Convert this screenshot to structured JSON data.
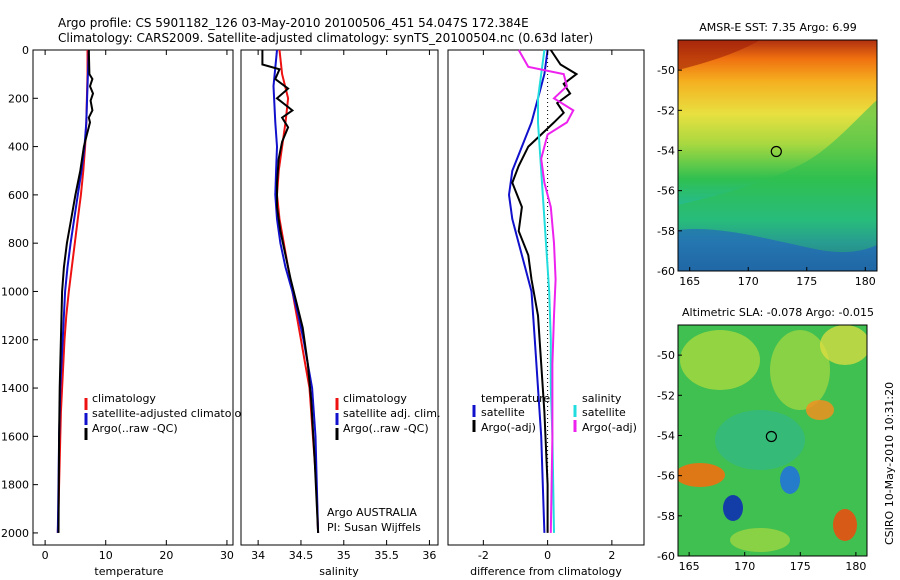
{
  "header": {
    "line1": "Argo profile: CS 5901182_126 03-May-2010 20100506_451 54.047S 172.384E",
    "line2": "Climatology: CARS2009. Satellite-adjusted climatology: synTS_20100504.nc (0.63d later)"
  },
  "side_label": "CSIRO 10-May-2010 10:31:20",
  "colors": {
    "climatology": "#ee1111",
    "satellite": "#1111cc",
    "argo": "#000000",
    "salinity_satellite": "#22dddd",
    "salinity_argo": "#ee22ee"
  },
  "chart_data": [
    {
      "type": "line",
      "name": "temperature-panel",
      "xlabel": "temperature",
      "ylabel": "",
      "xlim": [
        -2,
        31
      ],
      "ylim": [
        2050,
        0
      ],
      "xticks": [
        0,
        10,
        20,
        30
      ],
      "yticks": [
        0,
        200,
        400,
        600,
        800,
        1000,
        1200,
        1400,
        1600,
        1800,
        2000
      ],
      "legend": [
        "climatology",
        "satellite-adjusted climatology",
        "Argo(..raw -QC)"
      ],
      "series": [
        {
          "key": "clim",
          "color": "#ee1111",
          "x": [
            7.0,
            7.0,
            6.9,
            6.8,
            6.6,
            6.3,
            5.9,
            5.4,
            4.9,
            4.4,
            3.9,
            3.5,
            3.2,
            3.0,
            2.8,
            2.6,
            2.5,
            2.4,
            2.3,
            2.2,
            2.1
          ],
          "y": [
            0,
            100,
            200,
            300,
            400,
            500,
            600,
            700,
            800,
            900,
            1000,
            1100,
            1200,
            1300,
            1400,
            1500,
            1600,
            1700,
            1800,
            1900,
            2000
          ]
        },
        {
          "key": "sat",
          "color": "#1111cc",
          "x": [
            7.2,
            7.0,
            6.8,
            6.5,
            6.0,
            5.4,
            4.8,
            4.2,
            3.7,
            3.3,
            2.9,
            2.7,
            2.5,
            2.4,
            2.3,
            2.2,
            2.1
          ],
          "y": [
            0,
            150,
            300,
            400,
            500,
            600,
            700,
            800,
            900,
            1000,
            1200,
            1300,
            1400,
            1500,
            1600,
            1800,
            2000
          ]
        },
        {
          "key": "argo",
          "color": "#000000",
          "x": [
            7.2,
            7.3,
            7.8,
            7.4,
            7.9,
            7.5,
            7.8,
            7.2,
            7.4,
            6.9,
            6.4,
            5.8,
            5.0,
            4.3,
            3.6,
            3.1,
            2.8,
            2.6,
            2.4,
            2.3,
            2.2
          ],
          "y": [
            0,
            100,
            120,
            150,
            180,
            210,
            250,
            280,
            300,
            350,
            400,
            500,
            600,
            700,
            800,
            900,
            1000,
            1200,
            1400,
            1600,
            2000
          ]
        }
      ],
      "annotations": []
    },
    {
      "type": "line",
      "name": "salinity-panel",
      "xlabel": "salinity",
      "ylabel": "",
      "xlim": [
        33.8,
        36.1
      ],
      "ylim": [
        2050,
        0
      ],
      "xticks": [
        34,
        34.5,
        35,
        35.5,
        36
      ],
      "yticks": [],
      "legend": [
        "climatology",
        "satellite adj. clim.",
        "Argo(..raw -QC)"
      ],
      "series": [
        {
          "key": "clim",
          "color": "#ee1111",
          "x": [
            34.25,
            34.28,
            34.35,
            34.32,
            34.28,
            34.24,
            34.22,
            34.25,
            34.3,
            34.35,
            34.4,
            34.45,
            34.5,
            34.55,
            34.6,
            34.64,
            34.68,
            34.7
          ],
          "y": [
            0,
            100,
            200,
            300,
            400,
            500,
            600,
            700,
            800,
            900,
            1000,
            1100,
            1200,
            1300,
            1400,
            1600,
            1800,
            2000
          ]
        },
        {
          "key": "sat",
          "color": "#1111cc",
          "x": [
            34.22,
            34.18,
            34.2,
            34.22,
            34.21,
            34.2,
            34.22,
            34.26,
            34.32,
            34.4,
            34.47,
            34.53,
            34.58,
            34.63,
            34.67,
            34.7
          ],
          "y": [
            0,
            150,
            300,
            400,
            500,
            600,
            700,
            800,
            900,
            1000,
            1100,
            1200,
            1300,
            1400,
            1600,
            2000
          ]
        },
        {
          "key": "argo",
          "color": "#000000",
          "x": [
            34.05,
            34.05,
            34.25,
            34.2,
            34.35,
            34.22,
            34.4,
            34.28,
            34.35,
            34.28,
            34.24,
            34.22,
            34.22,
            34.26,
            34.32,
            34.38,
            34.45,
            34.52,
            34.58,
            34.62,
            34.66,
            34.7
          ],
          "y": [
            0,
            60,
            80,
            120,
            160,
            200,
            250,
            280,
            320,
            380,
            450,
            550,
            650,
            750,
            850,
            950,
            1050,
            1150,
            1300,
            1450,
            1700,
            2000
          ]
        }
      ],
      "annotations": [
        "Argo AUSTRALIA",
        "PI: Susan Wijffels"
      ]
    },
    {
      "type": "line",
      "name": "difference-panel",
      "xlabel": "difference from climatology",
      "ylabel": "",
      "xlim": [
        -3.1,
        3.0
      ],
      "ylim": [
        2050,
        0
      ],
      "xticks": [
        -2,
        0,
        2
      ],
      "yticks": [],
      "legend_temperature": [
        "temperature",
        "satellite",
        "Argo(-adj)"
      ],
      "legend_salinity": [
        "salinity",
        "satellite",
        "Argo(-adj)"
      ],
      "series": [
        {
          "key": "t_sat",
          "color": "#1111cc",
          "x": [
            0.0,
            -0.1,
            -0.3,
            -0.5,
            -0.8,
            -1.1,
            -1.2,
            -1.1,
            -0.9,
            -0.7,
            -0.5,
            -0.4,
            -0.3,
            -0.2,
            -0.15,
            -0.1
          ],
          "y": [
            0,
            100,
            200,
            300,
            400,
            500,
            600,
            700,
            800,
            900,
            1000,
            1200,
            1400,
            1600,
            1800,
            2000
          ]
        },
        {
          "key": "t_argo",
          "color": "#000000",
          "x": [
            0.1,
            0.4,
            0.9,
            0.5,
            0.7,
            0.3,
            0.5,
            0.2,
            -0.2,
            -0.6,
            -0.9,
            -1.1,
            -0.8,
            -0.9,
            -0.6,
            -0.5,
            -0.3,
            -0.2,
            -0.1,
            0.0,
            0.0
          ],
          "y": [
            0,
            60,
            100,
            140,
            180,
            220,
            260,
            300,
            350,
            400,
            480,
            550,
            650,
            750,
            850,
            950,
            1100,
            1300,
            1500,
            1800,
            2000
          ]
        },
        {
          "key": "s_sat",
          "color": "#22dddd",
          "x": [
            -0.1,
            -0.2,
            -0.3,
            -0.3,
            -0.25,
            -0.2,
            -0.15,
            -0.1,
            -0.05,
            0.0,
            0.05,
            0.1,
            0.1,
            0.15,
            0.2
          ],
          "y": [
            0,
            100,
            200,
            300,
            400,
            500,
            600,
            700,
            800,
            900,
            1000,
            1200,
            1400,
            1600,
            2000
          ]
        },
        {
          "key": "s_argo",
          "color": "#ee22ee",
          "x": [
            -0.9,
            -0.6,
            0.5,
            0.6,
            0.2,
            0.8,
            0.6,
            0.0,
            -0.2,
            -0.1,
            0.1,
            0.2,
            0.25,
            0.2,
            0.15,
            0.15,
            0.1
          ],
          "y": [
            0,
            70,
            100,
            150,
            200,
            250,
            300,
            350,
            450,
            550,
            650,
            800,
            950,
            1100,
            1300,
            1600,
            2000
          ]
        }
      ],
      "annotations": []
    },
    {
      "type": "heatmap",
      "name": "sst-map",
      "title": "AMSR-E SST: 7.35 Argo: 6.99",
      "xlim": [
        164,
        181
      ],
      "ylim": [
        -60,
        -48.5
      ],
      "xticks": [
        165,
        170,
        175,
        180
      ],
      "yticks": [
        -50,
        -52,
        -54,
        -56,
        -58,
        -60
      ],
      "marker": {
        "lon": 172.4,
        "lat": -54.05
      }
    },
    {
      "type": "heatmap",
      "name": "sla-map",
      "title": "Altimetric SLA: -0.078 Argo: -0.015",
      "xlim": [
        164,
        181
      ],
      "ylim": [
        -60,
        -48.5
      ],
      "xticks": [
        165,
        170,
        175,
        180
      ],
      "yticks": [
        -50,
        -52,
        -54,
        -56,
        -58,
        -60
      ],
      "marker": {
        "lon": 172.4,
        "lat": -54.05
      }
    }
  ]
}
